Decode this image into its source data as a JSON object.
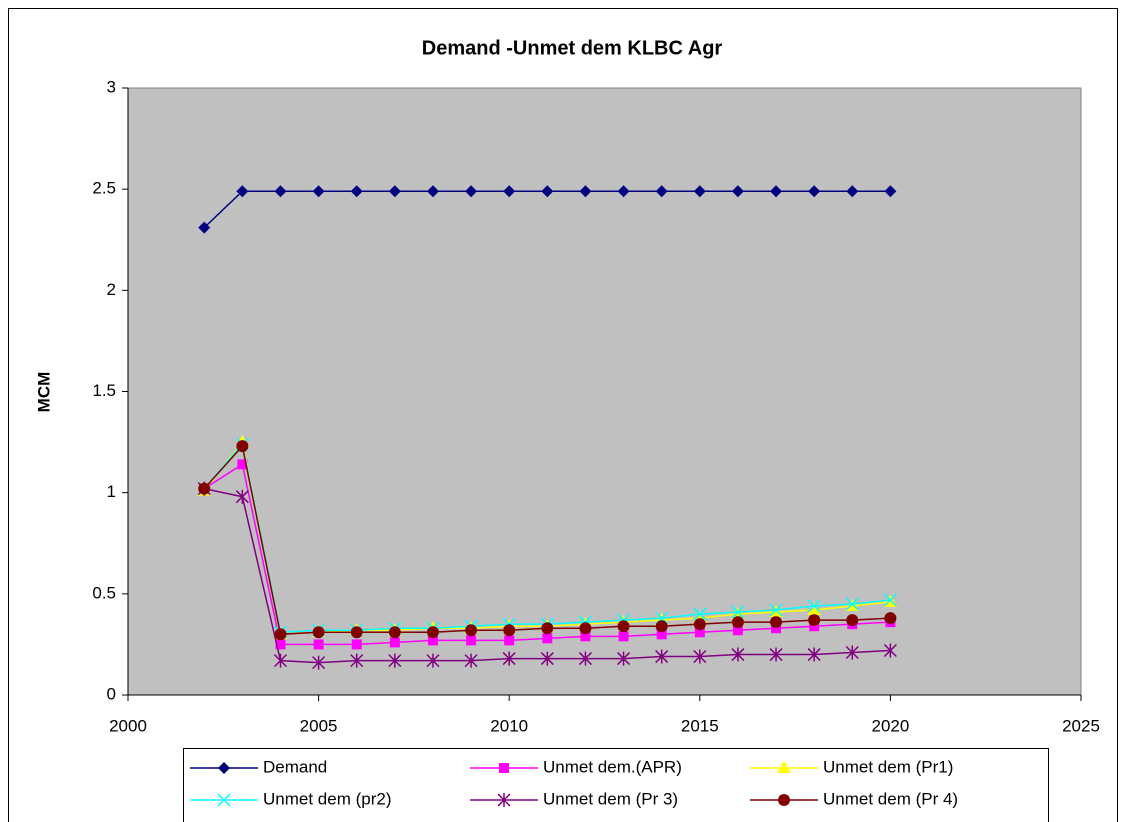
{
  "chart_data": {
    "type": "line",
    "title": "Demand -Unmet dem KLBC Agr",
    "y_label": "MCM",
    "x": [
      2002,
      2003,
      2004,
      2005,
      2006,
      2007,
      2008,
      2009,
      2010,
      2011,
      2012,
      2013,
      2014,
      2015,
      2016,
      2017,
      2018,
      2019,
      2020
    ],
    "series": [
      {
        "name": "Demand",
        "color": "#000080",
        "marker": "diamond",
        "values": [
          2.31,
          2.49,
          2.49,
          2.49,
          2.49,
          2.49,
          2.49,
          2.49,
          2.49,
          2.49,
          2.49,
          2.49,
          2.49,
          2.49,
          2.49,
          2.49,
          2.49,
          2.49,
          2.49
        ]
      },
      {
        "name": "Unmet dem.(APR)",
        "color": "#ff00ff",
        "marker": "square",
        "values": [
          1.02,
          1.14,
          0.25,
          0.25,
          0.25,
          0.26,
          0.27,
          0.27,
          0.27,
          0.28,
          0.29,
          0.29,
          0.3,
          0.31,
          0.32,
          0.33,
          0.34,
          0.35,
          0.36
        ]
      },
      {
        "name": "Unmet dem (Pr1)",
        "color": "#ffff00",
        "marker": "triangle",
        "values": [
          1.01,
          1.25,
          0.3,
          0.31,
          0.32,
          0.32,
          0.33,
          0.33,
          0.34,
          0.34,
          0.35,
          0.36,
          0.37,
          0.38,
          0.4,
          0.41,
          0.42,
          0.44,
          0.46
        ]
      },
      {
        "name": "Unmet dem (pr2)",
        "color": "#00ffff",
        "marker": "x",
        "values": [
          1.02,
          1.24,
          0.31,
          0.32,
          0.32,
          0.33,
          0.33,
          0.34,
          0.35,
          0.35,
          0.36,
          0.37,
          0.38,
          0.4,
          0.41,
          0.42,
          0.44,
          0.45,
          0.47
        ]
      },
      {
        "name": "Unmet dem (Pr 3)",
        "color": "#800080",
        "marker": "asterisk",
        "values": [
          1.02,
          0.98,
          0.17,
          0.16,
          0.17,
          0.17,
          0.17,
          0.17,
          0.18,
          0.18,
          0.18,
          0.18,
          0.19,
          0.19,
          0.2,
          0.2,
          0.2,
          0.21,
          0.22
        ]
      },
      {
        "name": "Unmet dem (Pr 4)",
        "color": "#800000",
        "marker": "circle",
        "values": [
          1.02,
          1.23,
          0.3,
          0.31,
          0.31,
          0.31,
          0.31,
          0.32,
          0.32,
          0.33,
          0.33,
          0.34,
          0.34,
          0.35,
          0.36,
          0.36,
          0.37,
          0.37,
          0.38
        ]
      }
    ],
    "xlim": [
      2000,
      2025
    ],
    "xticks": [
      2000,
      2005,
      2010,
      2015,
      2020,
      2025
    ],
    "ylim": [
      0,
      3
    ],
    "yticks": [
      0,
      0.5,
      1,
      1.5,
      2,
      2.5,
      3
    ],
    "grid": false,
    "legend": "bottom",
    "plot_background": "#c0c0c0"
  }
}
